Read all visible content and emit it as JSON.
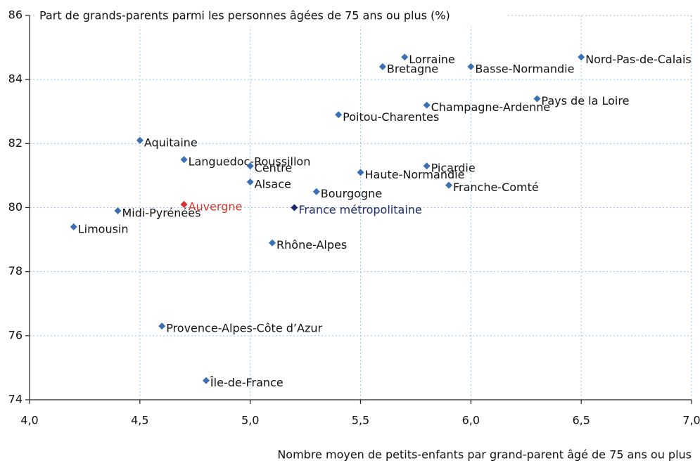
{
  "chart_data": {
    "type": "scatter",
    "title": "Part de grands-parents parmi les personnes âgées de 75 ans ou plus (%)",
    "x_label": "Nombre moyen de petits-enfants par grand-parent âgé de 75 ans ou plus",
    "labels": [
      "Lorraine",
      "Bretagne",
      "Basse-Normandie",
      "Nord-Pas-de-Calais",
      "Pays de la Loire",
      "Champagne-Ardenne",
      "Poitou-Charentes",
      "Aquitaine",
      "Languedoc-Roussillon",
      "Centre",
      "Picardie",
      "Haute-Normandie",
      "Alsace",
      "Franche-Comté",
      "Bourgogne",
      "Auvergne",
      "France métropolitaine",
      "Midi-Pyrénées",
      "Limousin",
      "Rhône-Alpes",
      "Provence-Alpes-Côte d’Azur",
      "Île-de-France"
    ],
    "x": [
      5.7,
      5.6,
      6.0,
      6.5,
      6.3,
      5.8,
      5.4,
      4.5,
      4.7,
      5.0,
      5.8,
      5.5,
      5.0,
      5.9,
      5.3,
      4.7,
      5.2,
      4.4,
      4.2,
      5.1,
      4.6,
      4.8
    ],
    "values": [
      84.7,
      84.4,
      84.4,
      84.7,
      83.4,
      83.2,
      82.9,
      82.1,
      81.5,
      81.3,
      81.3,
      81.1,
      80.8,
      80.7,
      80.5,
      80.1,
      80.0,
      79.9,
      79.4,
      78.9,
      76.3,
      74.6
    ],
    "colors": [
      "#3b6fb6",
      "#3b6fb6",
      "#3b6fb6",
      "#3b6fb6",
      "#3b6fb6",
      "#3b6fb6",
      "#3b6fb6",
      "#3b6fb6",
      "#3b6fb6",
      "#3b6fb6",
      "#3b6fb6",
      "#3b6fb6",
      "#3b6fb6",
      "#3b6fb6",
      "#3b6fb6",
      "#d9342b",
      "#1f2a6b",
      "#3b6fb6",
      "#3b6fb6",
      "#3b6fb6",
      "#3b6fb6",
      "#3b6fb6"
    ],
    "xlim": [
      4,
      7
    ],
    "xticks": [
      {
        "value": 4,
        "label": "4,0"
      },
      {
        "value": 4.5,
        "label": "4,5"
      },
      {
        "value": 5,
        "label": "5,0"
      },
      {
        "value": 5.5,
        "label": "5,5"
      },
      {
        "value": 6,
        "label": "6,0"
      },
      {
        "value": 6.5,
        "label": "6,5"
      },
      {
        "value": 7,
        "label": "7,0"
      }
    ],
    "ylim": [
      74,
      86
    ],
    "yticks": [
      74,
      76,
      78,
      80,
      82,
      84,
      86
    ],
    "grid": true
  }
}
